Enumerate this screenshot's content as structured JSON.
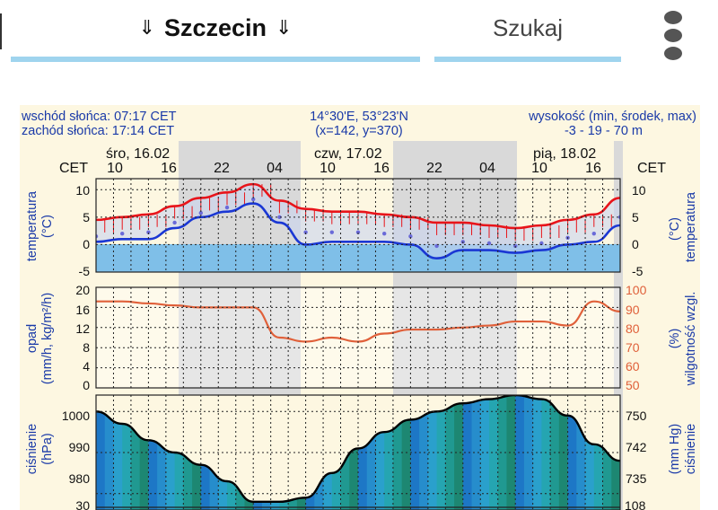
{
  "header": {
    "city": "Szczecin",
    "city_arrow": "⇓",
    "search_label": "Szukaj",
    "menu_icon": "more-vertical-icon"
  },
  "info": {
    "sunrise": "wschód słońca: 07:17 CET",
    "sunset": "zachód słońca: 17:14 CET",
    "coords": "14°30'E, 53°23'N",
    "grid": "(x=142,  y=370)",
    "altitude_label": "wysokość (min, środek, max)",
    "altitude_values": "-3 - 19 - 70 m"
  },
  "time_axis": {
    "timezone": "CET",
    "days": [
      "śro, 16.02",
      "czw, 17.02",
      "pią, 18.02"
    ],
    "hours": [
      "10",
      "16",
      "22",
      "04",
      "10",
      "16",
      "22",
      "04",
      "10",
      "16"
    ]
  },
  "panels": {
    "temperature": {
      "label_left": "temperatura",
      "unit_left": "(°C)",
      "label_right": "temperatura",
      "unit_right": "(°C)",
      "ticks": [
        "10",
        "5",
        "0",
        "-5"
      ]
    },
    "precip": {
      "label_left": "opad",
      "unit_left": "(mm/h, kg/m²/h)",
      "label_right": "wilgotność wzgl.",
      "unit_right": "(%)",
      "ticks_left": [
        "20",
        "16",
        "12",
        "8",
        "4",
        "0"
      ],
      "ticks_right": [
        "100",
        "90",
        "80",
        "70",
        "60",
        "50"
      ]
    },
    "pressure": {
      "label_left": "ciśnienie",
      "unit_left": "(hPa)",
      "label_right": "ciśnienie",
      "unit_right": "(mm Hg)",
      "ticks_left": [
        "1000",
        "990",
        "980"
      ],
      "ticks_right": [
        "750",
        "742",
        "735"
      ]
    },
    "next_panel": {
      "tick_left": "30",
      "tick_right": "108"
    }
  },
  "colors": {
    "accent_underline": "#9fd4ee",
    "background": "#fdf7e1",
    "label_blue": "#1a3aa8",
    "temp_red": "#e8141a",
    "temp_blue": "#1a37d4",
    "humidity": "#e0603a",
    "pressure_line": "#000000"
  },
  "chart_data": {
    "type": "line",
    "x": [
      "16.02 07",
      "16.02 10",
      "16.02 13",
      "16.02 16",
      "16.02 19",
      "16.02 22",
      "17.02 01",
      "17.02 04",
      "17.02 07",
      "17.02 10",
      "17.02 13",
      "17.02 16",
      "17.02 19",
      "17.02 22",
      "18.02 01",
      "18.02 04",
      "18.02 07",
      "18.02 10",
      "18.02 13",
      "18.02 16",
      "18.02 19"
    ],
    "series": [
      {
        "name": "temperatura",
        "values": [
          4.5,
          5,
          5.5,
          7,
          8.5,
          9.5,
          11,
          8,
          6.5,
          6,
          6,
          5.5,
          5,
          4,
          4,
          3.5,
          3,
          3.5,
          4.5,
          5.5,
          8.5
        ]
      },
      {
        "name": "temperatura odczuwalna",
        "values": [
          0.5,
          1,
          1,
          3,
          5,
          6,
          7.5,
          4,
          0,
          0.5,
          0.5,
          0.5,
          0,
          -2.5,
          -1,
          -1,
          -1.5,
          -1,
          0,
          0.5,
          3.5
        ]
      },
      {
        "name": "wilgotność wzgl.",
        "values": [
          93,
          93,
          92,
          91,
          90,
          90,
          90,
          75,
          73,
          75,
          73,
          77,
          79,
          79,
          80,
          81,
          83,
          83,
          81,
          93,
          88
        ]
      },
      {
        "name": "ciśnienie",
        "values": [
          1000,
          997,
          993,
          990,
          987,
          983,
          978,
          978,
          979,
          985,
          991,
          995,
          998,
          1000,
          1002,
          1003,
          1004,
          1003,
          999,
          992,
          988
        ]
      }
    ],
    "ylim_temperature": [
      -5,
      12
    ],
    "ylim_precip": [
      0,
      20
    ],
    "ylim_humidity": [
      50,
      100
    ],
    "ylim_pressure": [
      976,
      1004
    ],
    "grid": true
  }
}
